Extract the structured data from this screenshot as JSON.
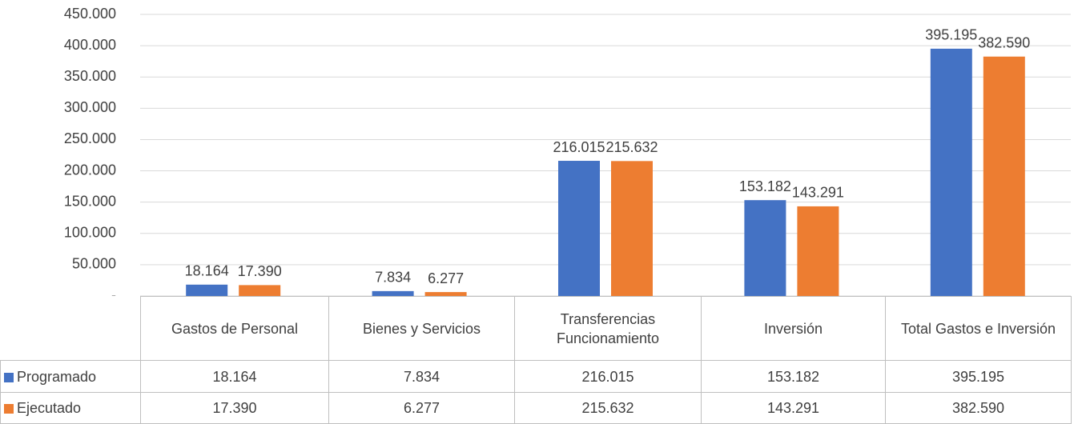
{
  "chart_data": {
    "type": "bar",
    "categories": [
      "Gastos de Personal",
      "Bienes y Servicios",
      "Transferencias Funcionamiento",
      "Inversión",
      "Total Gastos e Inversión"
    ],
    "series": [
      {
        "name": "Programado",
        "color": "#4472c4",
        "values": [
          18164,
          7834,
          216015,
          153182,
          395195
        ],
        "value_labels": [
          "18.164",
          "7.834",
          "216.015",
          "153.182",
          "395.195"
        ]
      },
      {
        "name": "Ejecutado",
        "color": "#ed7d31",
        "values": [
          17390,
          6277,
          215632,
          143291,
          382590
        ],
        "value_labels": [
          "17.390",
          "6.277",
          "215.632",
          "143.291",
          "382.590"
        ]
      }
    ],
    "ylim": [
      0,
      450000
    ],
    "yticks": [
      {
        "value": 0,
        "label": "-"
      },
      {
        "value": 50000,
        "label": "50.000"
      },
      {
        "value": 100000,
        "label": "100.000"
      },
      {
        "value": 150000,
        "label": "150.000"
      },
      {
        "value": 200000,
        "label": "200.000"
      },
      {
        "value": 250000,
        "label": "250.000"
      },
      {
        "value": 300000,
        "label": "300.000"
      },
      {
        "value": 350000,
        "label": "350.000"
      },
      {
        "value": 400000,
        "label": "400.000"
      },
      {
        "value": 450000,
        "label": "450.000"
      }
    ],
    "grid": true,
    "legend": "table"
  }
}
